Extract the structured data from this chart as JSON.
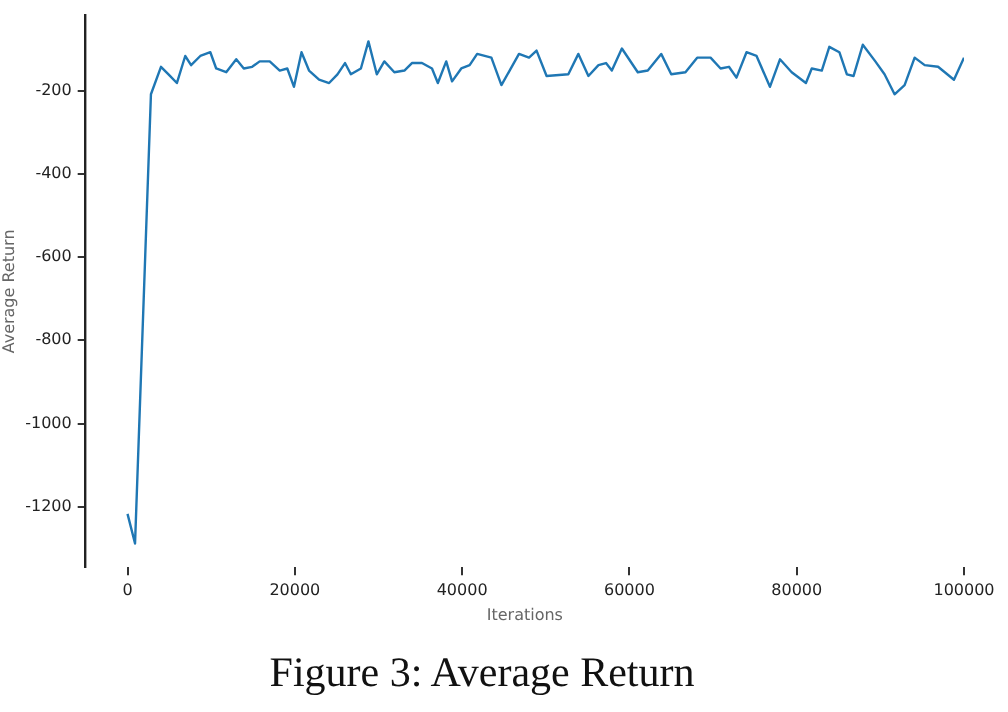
{
  "chart_data": {
    "type": "line",
    "title": "Figure 3: Average Return",
    "xlabel": "Iterations",
    "ylabel": "Average Return",
    "x": [
      0,
      900,
      2800,
      4000,
      4900,
      5900,
      6900,
      7600,
      8700,
      9900,
      10600,
      11800,
      13000,
      13900,
      14900,
      15800,
      17000,
      18200,
      19100,
      19900,
      20800,
      21700,
      22900,
      24100,
      25100,
      26000,
      26700,
      27900,
      28800,
      29800,
      30700,
      31900,
      33100,
      34000,
      35200,
      36400,
      37100,
      38100,
      38800,
      39900,
      40900,
      41800,
      43500,
      44700,
      46800,
      48000,
      48900,
      50100,
      52700,
      53900,
      55100,
      56300,
      57200,
      57900,
      59100,
      61000,
      62200,
      63800,
      65000,
      66700,
      68100,
      69700,
      70900,
      71900,
      72800,
      74000,
      75200,
      76800,
      78000,
      79400,
      81100,
      81800,
      83000,
      83900,
      85100,
      86000,
      86800,
      87900,
      89400,
      90500,
      91700,
      92900,
      94100,
      95300,
      96900,
      98800,
      100000
    ],
    "series": [
      {
        "color": "#1f77b4",
        "values": [
          -1217,
          -1288,
          -209,
          -143,
          -161,
          -182,
          -117,
          -139,
          -117,
          -108,
          -147,
          -156,
          -125,
          -147,
          -143,
          -130,
          -130,
          -152,
          -147,
          -191,
          -108,
          -152,
          -174,
          -182,
          -161,
          -134,
          -161,
          -147,
          -82,
          -161,
          -130,
          -156,
          -152,
          -134,
          -134,
          -147,
          -182,
          -130,
          -178,
          -147,
          -139,
          -112,
          -121,
          -187,
          -112,
          -121,
          -104,
          -165,
          -161,
          -112,
          -165,
          -139,
          -134,
          -152,
          -99,
          -156,
          -152,
          -112,
          -161,
          -156,
          -121,
          -121,
          -147,
          -143,
          -169,
          -108,
          -117,
          -191,
          -125,
          -156,
          -182,
          -147,
          -152,
          -95,
          -108,
          -161,
          -165,
          -90,
          -130,
          -161,
          -209,
          -187,
          -121,
          -139,
          -143,
          -174,
          -121
        ]
      }
    ],
    "xlim": [
      -5000,
      100000
    ],
    "xticks": [
      0,
      20000,
      40000,
      60000,
      80000,
      100000
    ],
    "ylim": [
      -1345,
      -20
    ],
    "yticks": [
      -1200,
      -1000,
      -800,
      -600,
      -400,
      -200
    ],
    "grid": false,
    "legend": false,
    "marker": "none",
    "line_style": "solid"
  }
}
